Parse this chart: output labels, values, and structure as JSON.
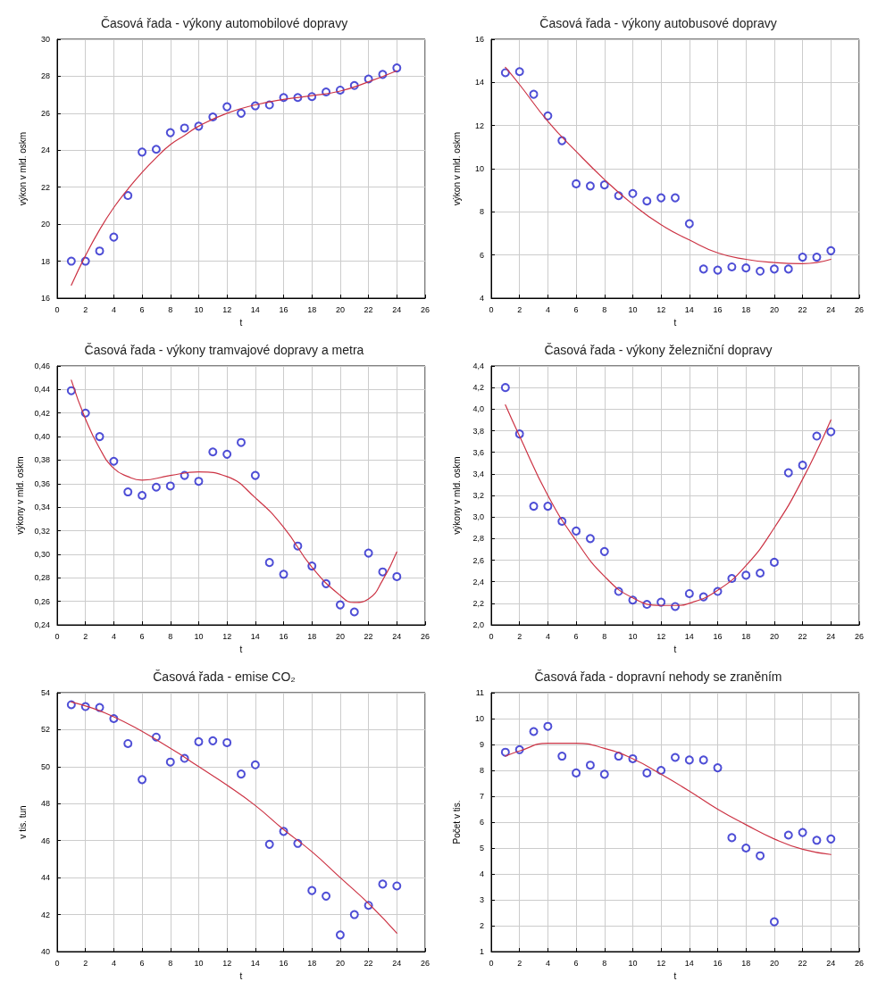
{
  "chart_data": [
    {
      "type": "scatter",
      "title": "Časová řada - výkony automobilové dopravy",
      "xlabel": "t",
      "ylabel": "výkon v mld. oskm",
      "xlim": [
        0,
        26
      ],
      "xticks": [
        0,
        2,
        4,
        6,
        8,
        10,
        12,
        14,
        16,
        18,
        20,
        22,
        24,
        26
      ],
      "ylim": [
        16,
        30
      ],
      "yticks": [
        16,
        18,
        20,
        22,
        24,
        26,
        28,
        30
      ],
      "grid": true,
      "series": [
        {
          "marker": "circle",
          "color": "#2222cc",
          "x": [
            1,
            2,
            3,
            4,
            5,
            6,
            7,
            8,
            9,
            10,
            11,
            12,
            13,
            14,
            15,
            16,
            17,
            18,
            19,
            20,
            21,
            22,
            23,
            24
          ],
          "values": [
            18.0,
            18.0,
            18.55,
            19.3,
            21.55,
            23.9,
            24.05,
            24.95,
            25.2,
            25.3,
            25.8,
            26.35,
            26.0,
            26.4,
            26.45,
            26.85,
            26.85,
            26.9,
            27.15,
            27.25,
            27.5,
            27.85,
            28.1,
            28.45
          ]
        },
        {
          "type": "line",
          "marker": "none",
          "color": "#cc3344",
          "x": [
            1,
            2,
            3,
            4,
            5,
            6,
            7,
            8,
            9,
            10,
            12,
            14,
            16,
            18,
            20,
            22,
            24
          ],
          "values": [
            16.7,
            18.3,
            19.7,
            20.9,
            21.9,
            22.8,
            23.6,
            24.3,
            24.8,
            25.3,
            26.0,
            26.45,
            26.75,
            26.95,
            27.2,
            27.7,
            28.3
          ]
        }
      ]
    },
    {
      "type": "scatter",
      "title": "Časová řada - výkony autobusové dopravy",
      "xlabel": "t",
      "ylabel": "výkon v mld. oskm",
      "xlim": [
        0,
        26
      ],
      "xticks": [
        0,
        2,
        4,
        6,
        8,
        10,
        12,
        14,
        16,
        18,
        20,
        22,
        24,
        26
      ],
      "ylim": [
        4,
        16
      ],
      "yticks": [
        4,
        6,
        8,
        10,
        12,
        14,
        16
      ],
      "grid": true,
      "series": [
        {
          "marker": "circle",
          "color": "#2222cc",
          "x": [
            1,
            2,
            3,
            4,
            5,
            6,
            7,
            8,
            9,
            10,
            11,
            12,
            13,
            14,
            15,
            16,
            17,
            18,
            19,
            20,
            21,
            22,
            23,
            24
          ],
          "values": [
            14.45,
            14.5,
            13.45,
            12.45,
            11.3,
            9.3,
            9.2,
            9.25,
            8.75,
            8.85,
            8.5,
            8.65,
            8.65,
            7.45,
            5.35,
            5.3,
            5.45,
            5.4,
            5.25,
            5.35,
            5.35,
            5.9,
            5.9,
            6.2
          ]
        },
        {
          "type": "line",
          "marker": "none",
          "color": "#cc3344",
          "x": [
            1,
            2,
            4,
            6,
            8,
            10,
            12,
            14,
            16,
            18,
            20,
            22,
            24
          ],
          "values": [
            14.7,
            13.9,
            12.2,
            10.8,
            9.5,
            8.35,
            7.4,
            6.7,
            6.1,
            5.8,
            5.65,
            5.6,
            5.8
          ]
        }
      ]
    },
    {
      "type": "scatter",
      "title": "Časová řada - výkony tramvajové dopravy a metra",
      "xlabel": "t",
      "ylabel": "výkony v mld. oskm",
      "xlim": [
        0,
        26
      ],
      "xticks": [
        0,
        2,
        4,
        6,
        8,
        10,
        12,
        14,
        16,
        18,
        20,
        22,
        24,
        26
      ],
      "ylim": [
        0.24,
        0.46
      ],
      "yticks": [
        {
          "value": 0.24,
          "label": "0,24"
        },
        {
          "value": 0.26,
          "label": "0,26"
        },
        {
          "value": 0.28,
          "label": "0,28"
        },
        {
          "value": 0.3,
          "label": "0,30"
        },
        {
          "value": 0.32,
          "label": "0,32"
        },
        {
          "value": 0.34,
          "label": "0,34"
        },
        {
          "value": 0.36,
          "label": "0,36"
        },
        {
          "value": 0.38,
          "label": "0,38"
        },
        {
          "value": 0.4,
          "label": "0,40"
        },
        {
          "value": 0.42,
          "label": "0,42"
        },
        {
          "value": 0.44,
          "label": "0,44"
        },
        {
          "value": 0.46,
          "label": "0,46"
        }
      ],
      "grid": true,
      "series": [
        {
          "marker": "circle",
          "color": "#2222cc",
          "x": [
            1,
            2,
            3,
            4,
            5,
            6,
            7,
            8,
            9,
            10,
            11,
            12,
            13,
            14,
            15,
            16,
            17,
            18,
            19,
            20,
            21,
            22,
            23,
            24
          ],
          "values": [
            0.439,
            0.42,
            0.4,
            0.379,
            0.353,
            0.35,
            0.357,
            0.358,
            0.367,
            0.362,
            0.387,
            0.385,
            0.395,
            0.367,
            0.293,
            0.283,
            0.307,
            0.29,
            0.275,
            0.257,
            0.251,
            0.301,
            0.285,
            0.281
          ]
        },
        {
          "type": "line",
          "marker": "none",
          "color": "#cc3344",
          "x": [
            1,
            2,
            3,
            4,
            5,
            6,
            8,
            10,
            12,
            14,
            16,
            18,
            20,
            21,
            22,
            23,
            24
          ],
          "values": [
            0.448,
            0.415,
            0.39,
            0.373,
            0.366,
            0.363,
            0.367,
            0.37,
            0.366,
            0.348,
            0.323,
            0.289,
            0.265,
            0.259,
            0.262,
            0.278,
            0.302
          ]
        }
      ]
    },
    {
      "type": "scatter",
      "title": "Časová řada - výkony železniční dopravy",
      "xlabel": "t",
      "ylabel": "výkony v mld. oskm",
      "xlim": [
        0,
        26
      ],
      "xticks": [
        0,
        2,
        4,
        6,
        8,
        10,
        12,
        14,
        16,
        18,
        20,
        22,
        24,
        26
      ],
      "ylim": [
        2.0,
        4.4
      ],
      "yticks": [
        {
          "value": 2.0,
          "label": "2,0"
        },
        {
          "value": 2.2,
          "label": "2,2"
        },
        {
          "value": 2.4,
          "label": "2,4"
        },
        {
          "value": 2.6,
          "label": "2,6"
        },
        {
          "value": 2.8,
          "label": "2,8"
        },
        {
          "value": 3.0,
          "label": "3,0"
        },
        {
          "value": 3.2,
          "label": "3,2"
        },
        {
          "value": 3.4,
          "label": "3,4"
        },
        {
          "value": 3.6,
          "label": "3,6"
        },
        {
          "value": 3.8,
          "label": "3,8"
        },
        {
          "value": 4.0,
          "label": "4,0"
        },
        {
          "value": 4.2,
          "label": "4,2"
        },
        {
          "value": 4.4,
          "label": "4,4"
        }
      ],
      "grid": true,
      "series": [
        {
          "marker": "circle",
          "color": "#2222cc",
          "x": [
            1,
            2,
            3,
            4,
            5,
            6,
            7,
            8,
            9,
            10,
            11,
            12,
            13,
            14,
            15,
            16,
            17,
            18,
            19,
            20,
            21,
            22,
            23,
            24
          ],
          "values": [
            4.2,
            3.77,
            3.1,
            3.1,
            2.96,
            2.87,
            2.8,
            2.68,
            2.31,
            2.23,
            2.19,
            2.21,
            2.17,
            2.29,
            2.26,
            2.31,
            2.43,
            2.46,
            2.48,
            2.58,
            3.41,
            3.48,
            3.75,
            3.79
          ]
        },
        {
          "type": "line",
          "marker": "none",
          "color": "#cc3344",
          "x": [
            1,
            2,
            4,
            6,
            8,
            10,
            12,
            13,
            14,
            16,
            18,
            20,
            22,
            24
          ],
          "values": [
            4.04,
            3.75,
            3.2,
            2.78,
            2.45,
            2.25,
            2.18,
            2.18,
            2.2,
            2.32,
            2.55,
            2.9,
            3.35,
            3.9
          ]
        }
      ]
    },
    {
      "type": "scatter",
      "title": "Časová řada - emise CO₂",
      "xlabel": "t",
      "ylabel": "v tis. tun",
      "xlim": [
        0,
        26
      ],
      "xticks": [
        0,
        2,
        4,
        6,
        8,
        10,
        12,
        14,
        16,
        18,
        20,
        22,
        24,
        26
      ],
      "ylim": [
        40,
        54
      ],
      "yticks": [
        40,
        42,
        44,
        46,
        48,
        50,
        52,
        54
      ],
      "grid": true,
      "series": [
        {
          "marker": "circle",
          "color": "#2222cc",
          "x": [
            1,
            2,
            3,
            4,
            5,
            6,
            7,
            8,
            9,
            10,
            11,
            12,
            13,
            14,
            15,
            16,
            17,
            18,
            19,
            20,
            21,
            22,
            23,
            24
          ],
          "values": [
            53.35,
            53.25,
            53.2,
            52.6,
            51.25,
            49.3,
            51.6,
            50.25,
            50.45,
            51.35,
            51.4,
            51.3,
            49.6,
            50.1,
            45.8,
            46.5,
            45.85,
            43.3,
            43.0,
            40.9,
            42.0,
            42.5,
            43.65,
            43.55
          ]
        },
        {
          "type": "line",
          "marker": "none",
          "color": "#cc3344",
          "x": [
            1,
            4,
            8,
            10,
            12,
            14,
            16,
            18,
            20,
            22,
            24
          ],
          "values": [
            53.5,
            52.7,
            51.0,
            50.0,
            49.0,
            47.9,
            46.6,
            45.4,
            44.0,
            42.6,
            41.0
          ]
        }
      ]
    },
    {
      "type": "scatter",
      "title": "Časová řada - dopravní nehody se zraněním",
      "xlabel": "t",
      "ylabel": "Počet v tis.",
      "xlim": [
        0,
        26
      ],
      "xticks": [
        0,
        2,
        4,
        6,
        8,
        10,
        12,
        14,
        16,
        18,
        20,
        22,
        24,
        26
      ],
      "ylim": [
        1,
        11
      ],
      "yticks": [
        1,
        2,
        3,
        4,
        5,
        6,
        7,
        8,
        9,
        10,
        11
      ],
      "grid": true,
      "series": [
        {
          "marker": "circle",
          "color": "#2222cc",
          "x": [
            1,
            2,
            3,
            4,
            5,
            6,
            7,
            8,
            9,
            10,
            11,
            12,
            13,
            14,
            15,
            16,
            17,
            18,
            19,
            20,
            21,
            22,
            23,
            24
          ],
          "values": [
            8.7,
            8.8,
            9.5,
            9.7,
            8.55,
            7.9,
            8.2,
            7.85,
            8.55,
            8.45,
            7.9,
            8.0,
            8.5,
            8.4,
            8.4,
            8.1,
            5.4,
            5.0,
            4.7,
            2.15,
            5.5,
            5.6,
            5.3,
            5.35
          ]
        },
        {
          "type": "line",
          "marker": "none",
          "color": "#cc3344",
          "x": [
            1,
            2,
            4,
            6,
            8,
            10,
            12,
            14,
            16,
            18,
            20,
            22,
            24
          ],
          "values": [
            8.55,
            8.75,
            9.05,
            9.05,
            8.85,
            8.45,
            7.85,
            7.2,
            6.5,
            5.9,
            5.35,
            4.95,
            4.75
          ]
        }
      ]
    }
  ]
}
